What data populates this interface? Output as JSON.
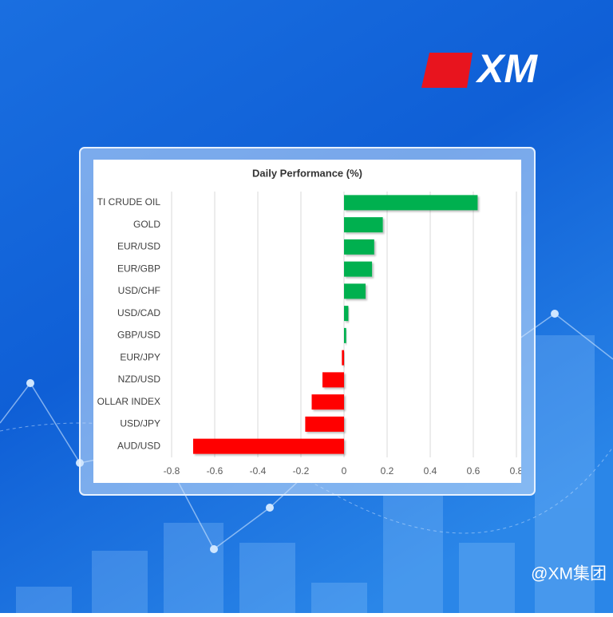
{
  "logo_text": "XM",
  "watermark": "@XM集团",
  "chart_data": {
    "type": "hbar",
    "title": "Daily Performance (%)",
    "categories": [
      "TI CRUDE OIL",
      "GOLD",
      "EUR/USD",
      "EUR/GBP",
      "USD/CHF",
      "USD/CAD",
      "GBP/USD",
      "EUR/JPY",
      "NZD/USD",
      "OLLAR INDEX",
      "USD/JPY",
      "AUD/USD"
    ],
    "values": [
      0.62,
      0.18,
      0.14,
      0.13,
      0.1,
      0.02,
      0.01,
      -0.01,
      -0.1,
      -0.15,
      -0.18,
      -0.7
    ],
    "colors": {
      "positive": "#00b050",
      "negative": "#ff0000"
    },
    "xlim": [
      -0.8,
      0.8
    ],
    "xticks": [
      -0.8,
      -0.6,
      -0.4,
      -0.2,
      0,
      0.2,
      0.4,
      0.6,
      0.8
    ],
    "grid": true
  }
}
